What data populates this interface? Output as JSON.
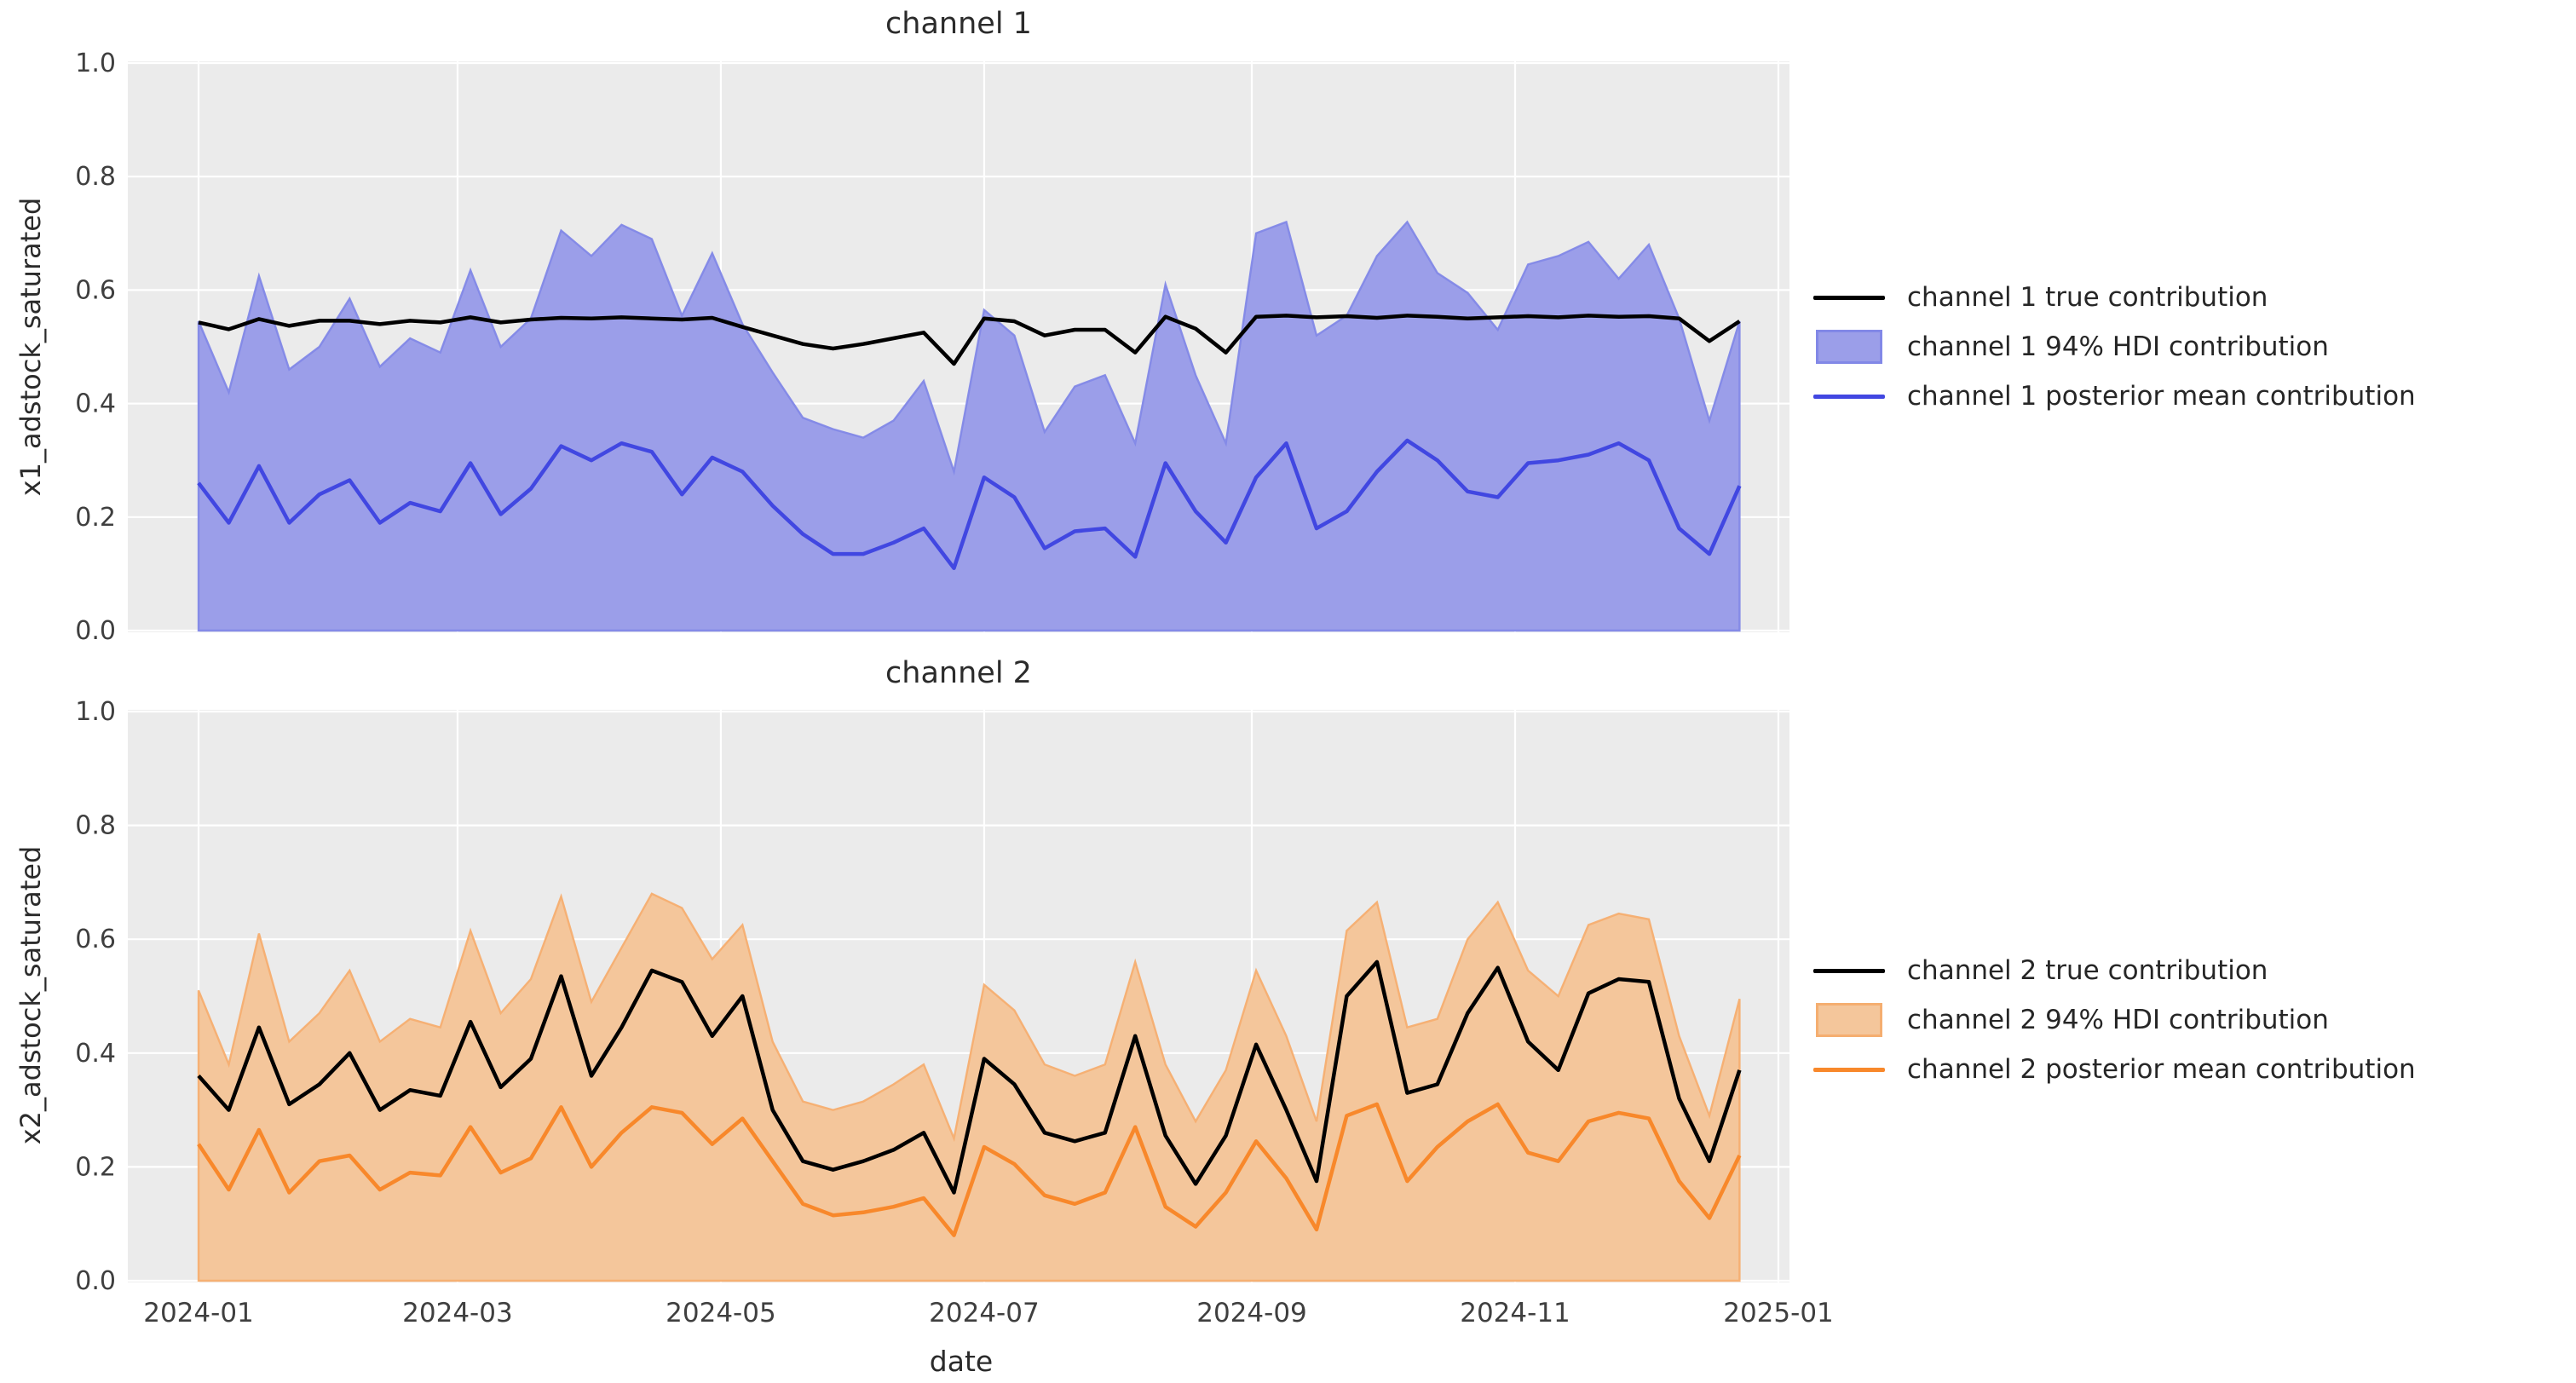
{
  "figure": {
    "background": "#ffffff",
    "plot_background": "#ebebeb",
    "grid_color": "#ffffff",
    "title_color": "#2b2b2b",
    "tick_color": "#3f3f3f"
  },
  "x_axis": {
    "label": "date",
    "tick_labels": [
      "2024-01",
      "2024-03",
      "2024-05",
      "2024-07",
      "2024-09",
      "2024-11",
      "2025-01"
    ],
    "tick_days": [
      0,
      60,
      121,
      182,
      244,
      305,
      366
    ]
  },
  "y_axis": {
    "tick_labels": [
      "0.0",
      "0.2",
      "0.4",
      "0.6",
      "0.8",
      "1.0"
    ],
    "tick_values": [
      0,
      0.2,
      0.4,
      0.6,
      0.8,
      1.0
    ]
  },
  "chart_data": [
    {
      "type": "area",
      "title": "channel 1",
      "ylabel": "x1_adstock_saturated",
      "xlabel": "",
      "ylim": [
        0,
        1
      ],
      "grid": true,
      "legend_position": "right",
      "legend": [
        "channel 1 true contribution",
        "channel 1 94% HDI contribution",
        "channel 1 posterior mean contribution"
      ],
      "colors": {
        "true_line": "#000000",
        "hdi_fill": "#9b9ee9",
        "hdi_edge": "#8288e7",
        "mean_line": "#4147e1"
      },
      "x": [
        "2024-01-01",
        "2024-01-08",
        "2024-01-15",
        "2024-01-22",
        "2024-01-29",
        "2024-02-05",
        "2024-02-12",
        "2024-02-19",
        "2024-02-26",
        "2024-03-04",
        "2024-03-11",
        "2024-03-18",
        "2024-03-25",
        "2024-04-01",
        "2024-04-08",
        "2024-04-15",
        "2024-04-22",
        "2024-04-29",
        "2024-05-06",
        "2024-05-13",
        "2024-05-20",
        "2024-05-27",
        "2024-06-03",
        "2024-06-10",
        "2024-06-17",
        "2024-06-24",
        "2024-07-01",
        "2024-07-08",
        "2024-07-15",
        "2024-07-22",
        "2024-07-29",
        "2024-08-05",
        "2024-08-12",
        "2024-08-19",
        "2024-08-26",
        "2024-09-02",
        "2024-09-09",
        "2024-09-16",
        "2024-09-23",
        "2024-09-30",
        "2024-10-07",
        "2024-10-14",
        "2024-10-21",
        "2024-10-28",
        "2024-11-04",
        "2024-11-11",
        "2024-11-18",
        "2024-11-25",
        "2024-12-02",
        "2024-12-09",
        "2024-12-16",
        "2024-12-23"
      ],
      "series": [
        {
          "name": "channel 1 true contribution",
          "values": [
            0.543,
            0.531,
            0.549,
            0.537,
            0.546,
            0.546,
            0.54,
            0.546,
            0.543,
            0.552,
            0.543,
            0.548,
            0.551,
            0.55,
            0.552,
            0.55,
            0.548,
            0.551,
            0.535,
            0.52,
            0.505,
            0.497,
            0.505,
            0.515,
            0.525,
            0.47,
            0.55,
            0.545,
            0.52,
            0.53,
            0.53,
            0.49,
            0.553,
            0.532,
            0.49,
            0.553,
            0.555,
            0.552,
            0.554,
            0.551,
            0.555,
            0.553,
            0.55,
            0.552,
            0.554,
            0.552,
            0.555,
            0.553,
            0.554,
            0.55,
            0.51,
            0.545
          ]
        },
        {
          "name": "channel 1 94% HDI upper bound",
          "values": [
            0.545,
            0.42,
            0.625,
            0.46,
            0.5,
            0.585,
            0.465,
            0.515,
            0.49,
            0.635,
            0.5,
            0.55,
            0.705,
            0.66,
            0.715,
            0.69,
            0.555,
            0.665,
            0.54,
            0.455,
            0.375,
            0.355,
            0.34,
            0.37,
            0.44,
            0.28,
            0.565,
            0.52,
            0.35,
            0.43,
            0.45,
            0.33,
            0.61,
            0.45,
            0.33,
            0.7,
            0.72,
            0.52,
            0.555,
            0.66,
            0.72,
            0.63,
            0.595,
            0.53,
            0.645,
            0.66,
            0.685,
            0.62,
            0.68,
            0.55,
            0.37,
            0.545
          ]
        },
        {
          "name": "channel 1 94% HDI lower bound",
          "values": [
            0,
            0,
            0,
            0,
            0,
            0,
            0,
            0,
            0,
            0,
            0,
            0,
            0,
            0,
            0,
            0,
            0,
            0,
            0,
            0,
            0,
            0,
            0,
            0,
            0,
            0,
            0,
            0,
            0,
            0,
            0,
            0,
            0,
            0,
            0,
            0,
            0,
            0,
            0,
            0,
            0,
            0,
            0,
            0,
            0,
            0,
            0,
            0,
            0,
            0,
            0,
            0
          ]
        },
        {
          "name": "channel 1 posterior mean contribution",
          "values": [
            0.26,
            0.19,
            0.29,
            0.19,
            0.24,
            0.265,
            0.19,
            0.225,
            0.21,
            0.295,
            0.205,
            0.25,
            0.325,
            0.3,
            0.33,
            0.315,
            0.24,
            0.305,
            0.28,
            0.22,
            0.17,
            0.135,
            0.135,
            0.155,
            0.18,
            0.11,
            0.27,
            0.235,
            0.145,
            0.175,
            0.18,
            0.13,
            0.295,
            0.21,
            0.155,
            0.27,
            0.33,
            0.18,
            0.21,
            0.28,
            0.335,
            0.3,
            0.245,
            0.235,
            0.295,
            0.3,
            0.31,
            0.33,
            0.3,
            0.18,
            0.135,
            0.255
          ]
        }
      ]
    },
    {
      "type": "area",
      "title": "channel 2",
      "ylabel": "x2_adstock_saturated",
      "xlabel": "date",
      "ylim": [
        0,
        1
      ],
      "grid": true,
      "legend_position": "right",
      "legend": [
        "channel 2 true contribution",
        "channel 2 94% HDI contribution",
        "channel 2 posterior mean contribution"
      ],
      "colors": {
        "true_line": "#000000",
        "hdi_fill": "#f4c69b",
        "hdi_edge": "#f5ae70",
        "mean_line": "#f8882b"
      },
      "x": [
        "2024-01-01",
        "2024-01-08",
        "2024-01-15",
        "2024-01-22",
        "2024-01-29",
        "2024-02-05",
        "2024-02-12",
        "2024-02-19",
        "2024-02-26",
        "2024-03-04",
        "2024-03-11",
        "2024-03-18",
        "2024-03-25",
        "2024-04-01",
        "2024-04-08",
        "2024-04-15",
        "2024-04-22",
        "2024-04-29",
        "2024-05-06",
        "2024-05-13",
        "2024-05-20",
        "2024-05-27",
        "2024-06-03",
        "2024-06-10",
        "2024-06-17",
        "2024-06-24",
        "2024-07-01",
        "2024-07-08",
        "2024-07-15",
        "2024-07-22",
        "2024-07-29",
        "2024-08-05",
        "2024-08-12",
        "2024-08-19",
        "2024-08-26",
        "2024-09-02",
        "2024-09-09",
        "2024-09-16",
        "2024-09-23",
        "2024-09-30",
        "2024-10-07",
        "2024-10-14",
        "2024-10-21",
        "2024-10-28",
        "2024-11-04",
        "2024-11-11",
        "2024-11-18",
        "2024-11-25",
        "2024-12-02",
        "2024-12-09",
        "2024-12-16",
        "2024-12-23"
      ],
      "series": [
        {
          "name": "channel 2 true contribution",
          "values": [
            0.36,
            0.3,
            0.445,
            0.31,
            0.345,
            0.4,
            0.3,
            0.335,
            0.325,
            0.455,
            0.34,
            0.39,
            0.535,
            0.36,
            0.445,
            0.545,
            0.525,
            0.43,
            0.5,
            0.3,
            0.21,
            0.195,
            0.21,
            0.23,
            0.26,
            0.155,
            0.39,
            0.345,
            0.26,
            0.245,
            0.26,
            0.43,
            0.255,
            0.17,
            0.255,
            0.415,
            0.3,
            0.175,
            0.5,
            0.56,
            0.33,
            0.345,
            0.47,
            0.55,
            0.42,
            0.37,
            0.505,
            0.53,
            0.525,
            0.32,
            0.21,
            0.37
          ]
        },
        {
          "name": "channel 2 94% HDI upper bound",
          "values": [
            0.51,
            0.38,
            0.61,
            0.42,
            0.47,
            0.545,
            0.42,
            0.46,
            0.445,
            0.615,
            0.47,
            0.53,
            0.675,
            0.49,
            0.585,
            0.68,
            0.655,
            0.565,
            0.625,
            0.42,
            0.315,
            0.3,
            0.315,
            0.345,
            0.38,
            0.25,
            0.52,
            0.475,
            0.38,
            0.36,
            0.38,
            0.56,
            0.38,
            0.28,
            0.37,
            0.545,
            0.43,
            0.28,
            0.615,
            0.665,
            0.445,
            0.46,
            0.6,
            0.665,
            0.545,
            0.5,
            0.625,
            0.645,
            0.635,
            0.43,
            0.29,
            0.495
          ]
        },
        {
          "name": "channel 2 94% HDI lower bound",
          "values": [
            0,
            0,
            0,
            0,
            0,
            0,
            0,
            0,
            0,
            0,
            0,
            0,
            0,
            0,
            0,
            0,
            0,
            0,
            0,
            0,
            0,
            0,
            0,
            0,
            0,
            0,
            0,
            0,
            0,
            0,
            0,
            0,
            0,
            0,
            0,
            0,
            0,
            0,
            0,
            0,
            0,
            0,
            0,
            0,
            0,
            0,
            0,
            0,
            0,
            0,
            0,
            0
          ]
        },
        {
          "name": "channel 2 posterior mean contribution",
          "values": [
            0.24,
            0.16,
            0.265,
            0.155,
            0.21,
            0.22,
            0.16,
            0.19,
            0.185,
            0.27,
            0.19,
            0.215,
            0.305,
            0.2,
            0.26,
            0.305,
            0.295,
            0.24,
            0.285,
            0.21,
            0.135,
            0.115,
            0.12,
            0.13,
            0.145,
            0.08,
            0.235,
            0.205,
            0.15,
            0.135,
            0.155,
            0.27,
            0.13,
            0.095,
            0.155,
            0.245,
            0.18,
            0.09,
            0.29,
            0.31,
            0.175,
            0.235,
            0.28,
            0.31,
            0.225,
            0.21,
            0.28,
            0.295,
            0.285,
            0.175,
            0.11,
            0.22
          ]
        }
      ]
    }
  ]
}
